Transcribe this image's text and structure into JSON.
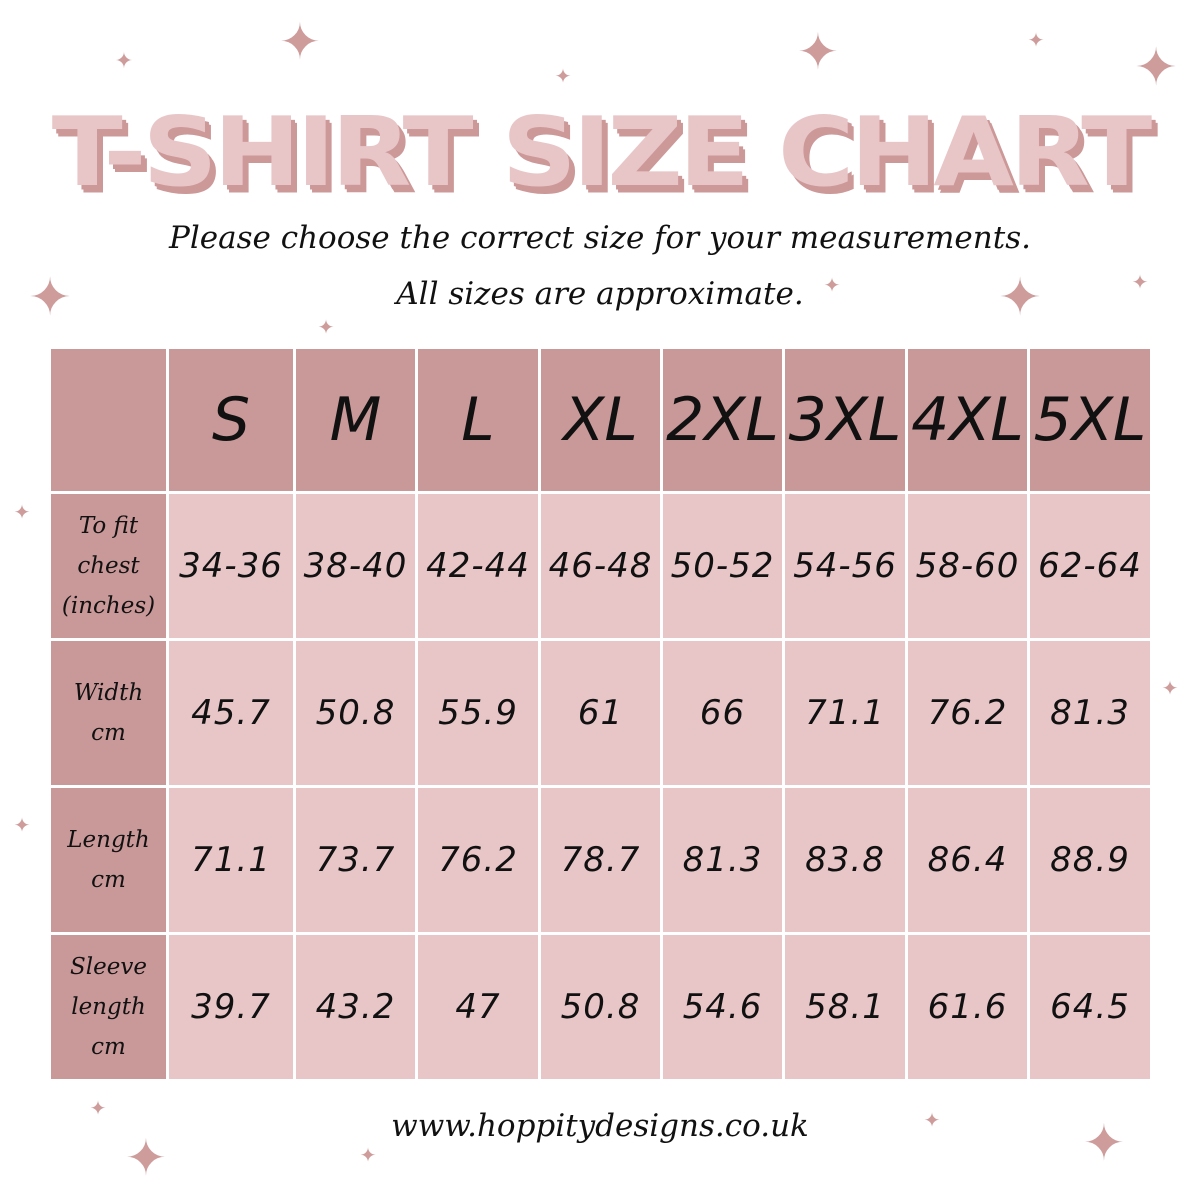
{
  "title": "T-SHIRT SIZE CHART",
  "subtitle_line1": "Please choose the correct size for your measurements.",
  "subtitle_line2": "All sizes are approximate.",
  "colors": {
    "header": "#c99898",
    "cell": "#e8c6c8",
    "title": "#e8c6c8",
    "title_shadow": "#cc9898",
    "star": "#cf9c9c"
  },
  "table": {
    "sizes": [
      "S",
      "M",
      "L",
      "XL",
      "2XL",
      "3XL",
      "4XL",
      "5XL"
    ],
    "rows": [
      {
        "label": [
          "To fit",
          "chest",
          "(inches)"
        ],
        "values": [
          "34-36",
          "38-40",
          "42-44",
          "46-48",
          "50-52",
          "54-56",
          "58-60",
          "62-64"
        ]
      },
      {
        "label": [
          "Width",
          "cm"
        ],
        "values": [
          "45.7",
          "50.8",
          "55.9",
          "61",
          "66",
          "71.1",
          "76.2",
          "81.3"
        ]
      },
      {
        "label": [
          "Length",
          "cm"
        ],
        "values": [
          "71.1",
          "73.7",
          "76.2",
          "78.7",
          "81.3",
          "83.8",
          "86.4",
          "88.9"
        ]
      },
      {
        "label": [
          "Sleeve",
          "length",
          "cm"
        ],
        "values": [
          "39.7",
          "43.2",
          "47",
          "50.8",
          "54.6",
          "58.1",
          "61.6",
          "64.5"
        ]
      }
    ]
  },
  "footer_url": "www.hoppitydesigns.co.uk"
}
